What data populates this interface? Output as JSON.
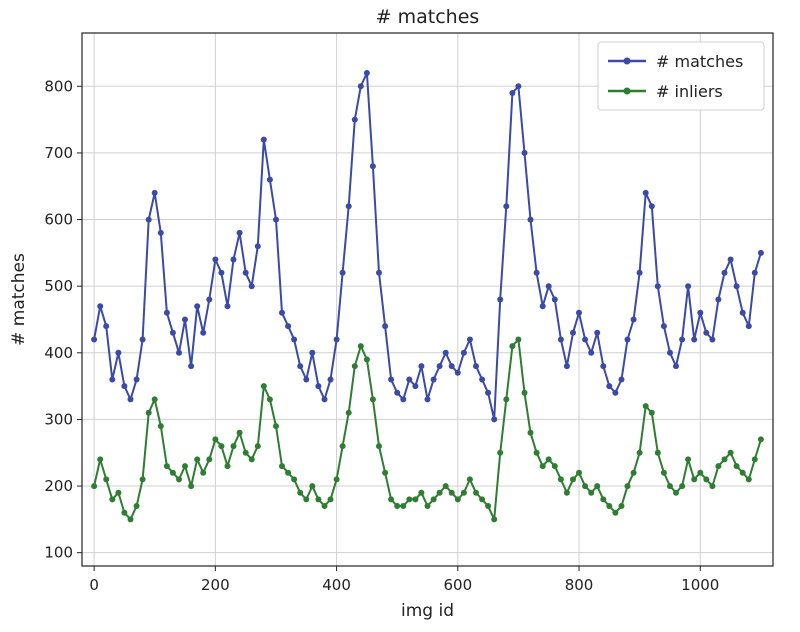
{
  "chart_data": {
    "type": "line",
    "title": "# matches",
    "xlabel": "img id",
    "ylabel": "# matches",
    "xlim": [
      -20,
      1120
    ],
    "ylim": [
      80,
      880
    ],
    "xticks": [
      0,
      200,
      400,
      600,
      800,
      1000
    ],
    "yticks": [
      100,
      200,
      300,
      400,
      500,
      600,
      700,
      800
    ],
    "grid": true,
    "legend_position": "top-right",
    "series": [
      {
        "name": "# matches",
        "color": "#3a4aa6",
        "marker": "circle",
        "x": [
          0,
          10,
          20,
          30,
          40,
          50,
          60,
          70,
          80,
          90,
          100,
          110,
          120,
          130,
          140,
          150,
          160,
          170,
          180,
          190,
          200,
          210,
          220,
          230,
          240,
          250,
          260,
          270,
          280,
          290,
          300,
          310,
          320,
          330,
          340,
          350,
          360,
          370,
          380,
          390,
          400,
          410,
          420,
          430,
          440,
          450,
          460,
          470,
          480,
          490,
          500,
          510,
          520,
          530,
          540,
          550,
          560,
          570,
          580,
          590,
          600,
          610,
          620,
          630,
          640,
          650,
          660,
          670,
          680,
          690,
          700,
          710,
          720,
          730,
          740,
          750,
          760,
          770,
          780,
          790,
          800,
          810,
          820,
          830,
          840,
          850,
          860,
          870,
          880,
          890,
          900,
          910,
          920,
          930,
          940,
          950,
          960,
          970,
          980,
          990,
          1000,
          1010,
          1020,
          1030,
          1040,
          1050,
          1060,
          1070,
          1080,
          1090,
          1100
        ],
        "y": [
          420,
          470,
          440,
          360,
          400,
          350,
          330,
          360,
          420,
          600,
          640,
          580,
          460,
          430,
          400,
          450,
          380,
          470,
          430,
          480,
          540,
          520,
          470,
          540,
          580,
          520,
          500,
          560,
          720,
          660,
          600,
          460,
          440,
          420,
          380,
          360,
          400,
          350,
          330,
          360,
          420,
          520,
          620,
          750,
          800,
          820,
          680,
          520,
          440,
          360,
          340,
          330,
          360,
          350,
          380,
          330,
          360,
          380,
          400,
          380,
          370,
          400,
          420,
          380,
          360,
          340,
          300,
          480,
          620,
          790,
          800,
          700,
          600,
          520,
          470,
          500,
          480,
          420,
          380,
          430,
          460,
          420,
          400,
          430,
          380,
          350,
          340,
          360,
          420,
          450,
          520,
          640,
          620,
          500,
          440,
          400,
          380,
          420,
          500,
          420,
          460,
          430,
          420,
          480,
          520,
          540,
          500,
          460,
          440,
          520,
          550
        ]
      },
      {
        "name": "# inliers",
        "color": "#2e7d32",
        "marker": "circle",
        "x": [
          0,
          10,
          20,
          30,
          40,
          50,
          60,
          70,
          80,
          90,
          100,
          110,
          120,
          130,
          140,
          150,
          160,
          170,
          180,
          190,
          200,
          210,
          220,
          230,
          240,
          250,
          260,
          270,
          280,
          290,
          300,
          310,
          320,
          330,
          340,
          350,
          360,
          370,
          380,
          390,
          400,
          410,
          420,
          430,
          440,
          450,
          460,
          470,
          480,
          490,
          500,
          510,
          520,
          530,
          540,
          550,
          560,
          570,
          580,
          590,
          600,
          610,
          620,
          630,
          640,
          650,
          660,
          670,
          680,
          690,
          700,
          710,
          720,
          730,
          740,
          750,
          760,
          770,
          780,
          790,
          800,
          810,
          820,
          830,
          840,
          850,
          860,
          870,
          880,
          890,
          900,
          910,
          920,
          930,
          940,
          950,
          960,
          970,
          980,
          990,
          1000,
          1010,
          1020,
          1030,
          1040,
          1050,
          1060,
          1070,
          1080,
          1090,
          1100
        ],
        "y": [
          200,
          240,
          210,
          180,
          190,
          160,
          150,
          170,
          210,
          310,
          330,
          290,
          230,
          220,
          210,
          230,
          200,
          240,
          220,
          240,
          270,
          260,
          230,
          260,
          280,
          250,
          240,
          260,
          350,
          330,
          290,
          230,
          220,
          210,
          190,
          180,
          200,
          180,
          170,
          180,
          210,
          260,
          310,
          380,
          410,
          390,
          330,
          260,
          220,
          180,
          170,
          170,
          180,
          180,
          190,
          170,
          180,
          190,
          200,
          190,
          180,
          190,
          210,
          190,
          180,
          170,
          150,
          250,
          330,
          410,
          420,
          340,
          280,
          250,
          230,
          240,
          230,
          210,
          190,
          210,
          220,
          200,
          190,
          200,
          180,
          170,
          160,
          170,
          200,
          220,
          250,
          320,
          310,
          250,
          220,
          200,
          190,
          200,
          240,
          210,
          220,
          210,
          200,
          230,
          240,
          250,
          230,
          220,
          210,
          240,
          270
        ]
      }
    ]
  }
}
